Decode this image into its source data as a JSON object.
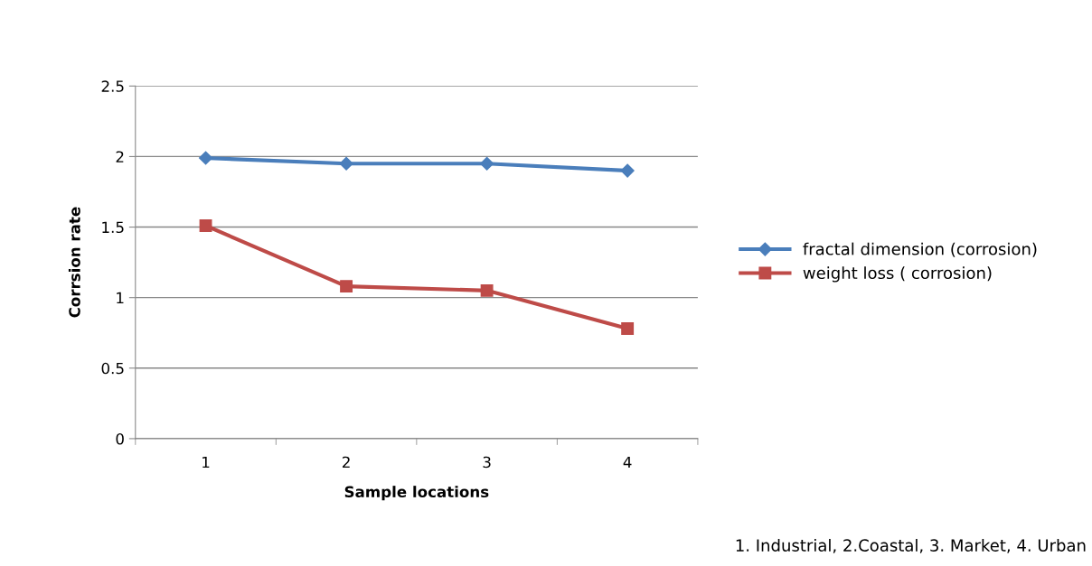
{
  "chart_data": {
    "type": "line",
    "xlabel": "Sample locations",
    "ylabel": "Corrsion rate",
    "categories": [
      "1",
      "2",
      "3",
      "4"
    ],
    "series": [
      {
        "name": "fractal dimension (corrosion)",
        "color": "#4a7ebb",
        "marker": "diamond",
        "values": [
          1.99,
          1.95,
          1.95,
          1.9
        ]
      },
      {
        "name": "weight loss ( corrosion)",
        "color": "#be4b48",
        "marker": "square",
        "values": [
          1.51,
          1.08,
          1.05,
          0.78
        ]
      }
    ],
    "ylim": [
      0,
      2.5
    ],
    "yticks": [
      0,
      0.5,
      1,
      1.5,
      2,
      2.5
    ],
    "grid": "y",
    "legend": "right",
    "line_style": "solid",
    "annotations": [
      "1. Industrial, 2.Coastal, 3. Market, 4. Urban"
    ]
  }
}
